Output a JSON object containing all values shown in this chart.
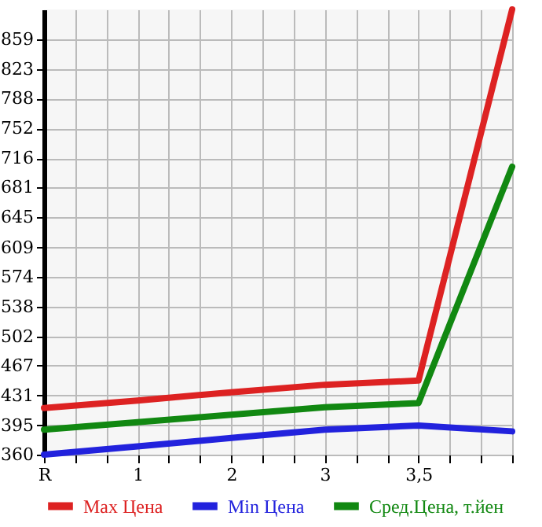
{
  "chart_data": {
    "type": "line",
    "categories": [
      "R",
      "1",
      "2",
      "3",
      "3,5",
      null
    ],
    "series": [
      {
        "name": "Max Цена",
        "color": "#dd2222",
        "values": [
          416,
          425,
          435,
          444,
          449,
          895
        ]
      },
      {
        "name": "Min Цена",
        "color": "#2222dd",
        "values": [
          360,
          370,
          380,
          390,
          395,
          388
        ]
      },
      {
        "name": "Сред.Цена, т.йен",
        "color": "#118811",
        "values": [
          390,
          399,
          408,
          417,
          422,
          706
        ]
      }
    ],
    "ylim": [
      360,
      895
    ],
    "yticks": [
      360,
      395,
      431,
      467,
      502,
      538,
      574,
      609,
      645,
      681,
      716,
      752,
      788,
      823,
      859
    ],
    "grid": true,
    "legend": "bottom",
    "marker": "none",
    "line_style": "solid"
  }
}
